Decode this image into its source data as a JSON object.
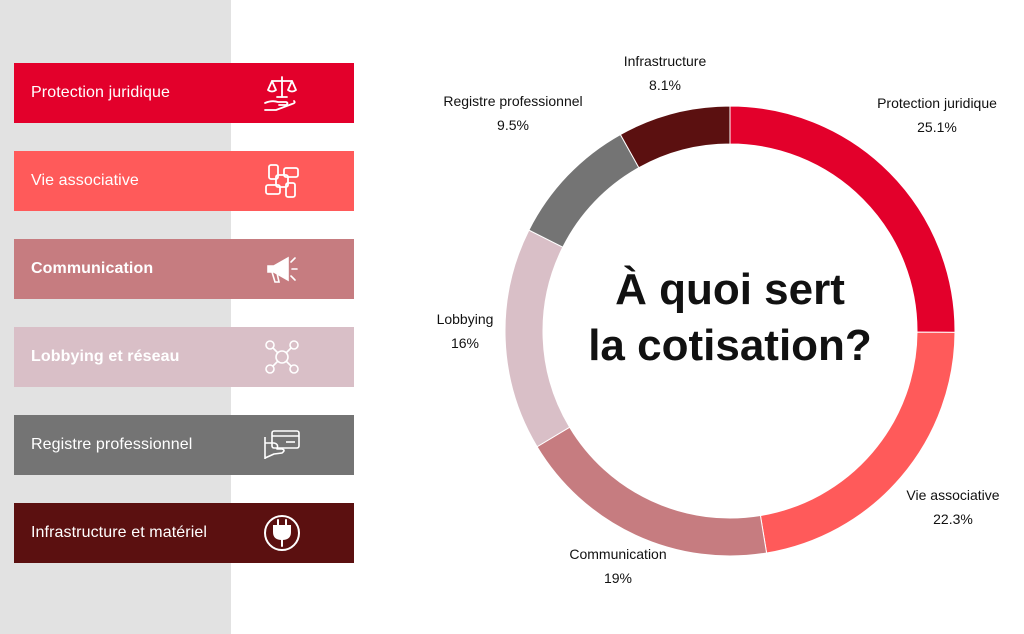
{
  "legend": [
    {
      "label": "Protection juridique",
      "color": "#e3002b",
      "bold": false,
      "icon": "justice-scales-icon"
    },
    {
      "label": "Vie associative",
      "color": "#ff5a5a",
      "bold": false,
      "icon": "joined-hands-icon"
    },
    {
      "label": "Communication",
      "color": "#c67c80",
      "bold": true,
      "icon": "megaphone-icon"
    },
    {
      "label": "Lobbying et réseau",
      "color": "#d9bfc7",
      "bold": true,
      "icon": "network-people-icon"
    },
    {
      "label": "Registre professionnel",
      "color": "#747474",
      "bold": false,
      "icon": "hand-card-icon"
    },
    {
      "label": "Infrastructure et matériel",
      "color": "#5b1010",
      "bold": false,
      "icon": "power-plug-icon"
    }
  ],
  "chart_data": {
    "type": "pie",
    "style": "donut",
    "center_title": [
      "À quoi sert",
      "la cotisation?"
    ],
    "slices": [
      {
        "label": "Protection juridique",
        "value": 25.1,
        "value_text": "25.1%",
        "color": "#e3002b"
      },
      {
        "label": "Vie associative",
        "value": 22.3,
        "value_text": "22.3%",
        "color": "#ff5a5a"
      },
      {
        "label": "Communication",
        "value": 19,
        "value_text": "19%",
        "color": "#c67c80"
      },
      {
        "label": "Lobbying",
        "value": 16,
        "value_text": "16%",
        "color": "#d9bfc7"
      },
      {
        "label": "Registre professionnel",
        "value": 9.5,
        "value_text": "9.5%",
        "color": "#747474"
      },
      {
        "label": "Infrastructure",
        "value": 8.1,
        "value_text": "8.1%",
        "color": "#5b1010"
      }
    ]
  }
}
